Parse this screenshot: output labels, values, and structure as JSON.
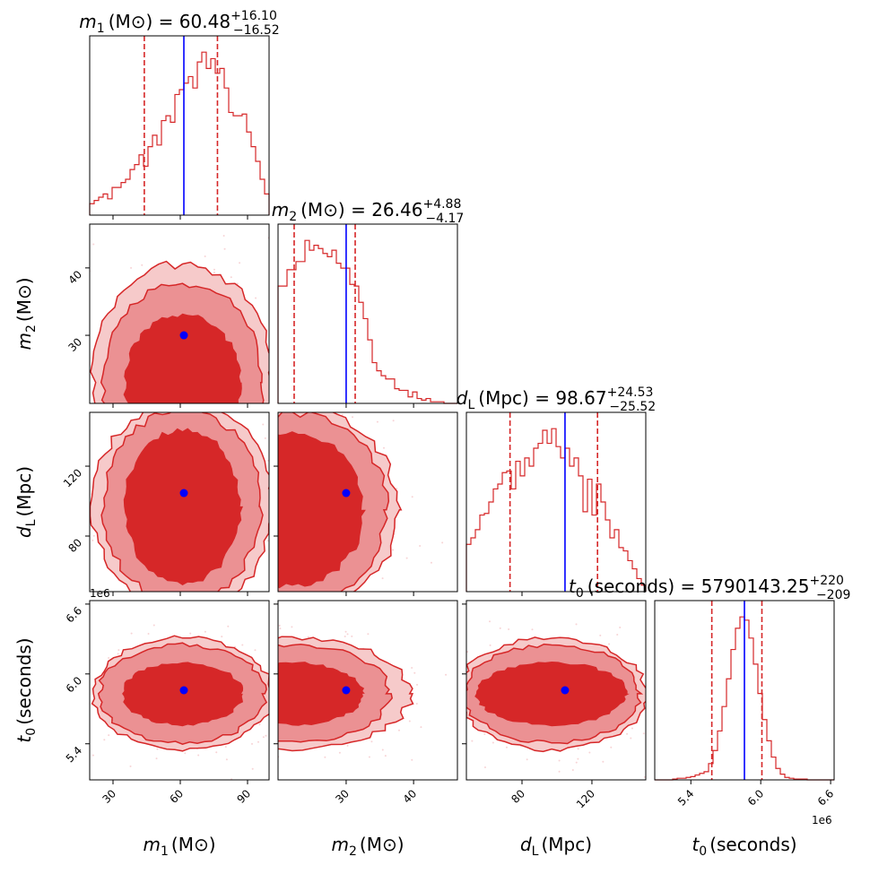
{
  "chart_data": {
    "type": "corner",
    "colors": {
      "main": "#d62728",
      "truth": "#0000ff",
      "fill_dark": "#d62728",
      "fill_mid": "#eb9193",
      "fill_light": "#f6caca",
      "scatter": "#f2b8bb"
    },
    "params": [
      {
        "symbol": "m",
        "sub": "1",
        "unit": "(M⊙)",
        "range": [
          19.6,
          99.6
        ],
        "ticks": [
          30,
          60,
          90
        ],
        "tick_labels": [
          "30",
          "60",
          "90"
        ],
        "title_value": " = 60.48",
        "title_plus": "+16.10",
        "title_minus": "−16.52",
        "quantiles": [
          43.96,
          76.58
        ],
        "truth": 61.6,
        "hist": [
          0.07,
          0.09,
          0.11,
          0.13,
          0.1,
          0.17,
          0.17,
          0.2,
          0.22,
          0.28,
          0.31,
          0.37,
          0.3,
          0.42,
          0.49,
          0.43,
          0.58,
          0.61,
          0.57,
          0.74,
          0.77,
          0.81,
          0.85,
          0.78,
          0.94,
          1.0,
          0.9,
          0.96,
          0.87,
          0.9,
          0.78,
          0.63,
          0.61,
          0.61,
          0.62,
          0.51,
          0.42,
          0.33,
          0.22,
          0.13
        ]
      },
      {
        "symbol": "m",
        "sub": "2",
        "unit": "(M⊙)",
        "range": [
          19.9,
          46.5
        ],
        "ticks": [
          30,
          40
        ],
        "tick_labels": [
          "30",
          "40"
        ],
        "title_value": " = 26.46",
        "title_plus": "+4.88",
        "title_minus": "−4.17",
        "quantiles": [
          22.29,
          31.34
        ],
        "truth": 30.0,
        "hist": [
          0.72,
          0.72,
          0.82,
          0.82,
          0.87,
          0.87,
          1.0,
          0.94,
          0.97,
          0.95,
          0.92,
          0.9,
          0.94,
          0.86,
          0.83,
          0.83,
          0.73,
          0.72,
          0.62,
          0.52,
          0.39,
          0.25,
          0.2,
          0.17,
          0.15,
          0.15,
          0.09,
          0.08,
          0.08,
          0.04,
          0.07,
          0.03,
          0.02,
          0.03,
          0.01,
          0.01,
          0.01,
          0,
          0,
          0
        ]
      },
      {
        "symbol": "d",
        "sub": "L",
        "unit": "(Mpc)",
        "range": [
          48.2,
          150.8
        ],
        "ticks": [
          80,
          120
        ],
        "tick_labels": [
          "80",
          "120"
        ],
        "title_value": " = 98.67",
        "title_plus": "+24.53",
        "title_minus": "−25.52",
        "quantiles": [
          73.15,
          123.2
        ],
        "truth": 104.6,
        "hist": [
          0.29,
          0.33,
          0.38,
          0.47,
          0.48,
          0.55,
          0.63,
          0.66,
          0.73,
          0.74,
          0.63,
          0.8,
          0.71,
          0.82,
          0.77,
          0.88,
          0.91,
          0.99,
          0.91,
          1.0,
          0.89,
          0.82,
          0.88,
          0.77,
          0.82,
          0.71,
          0.49,
          0.69,
          0.47,
          0.66,
          0.55,
          0.44,
          0.33,
          0.38,
          0.27,
          0.25,
          0.19,
          0.14,
          0.08,
          0.04
        ]
      },
      {
        "symbol": "t",
        "sub": "0",
        "unit": "(seconds)",
        "range": [
          5.09,
          6.63
        ],
        "ticks": [
          5.4,
          6.0,
          6.6
        ],
        "tick_labels": [
          "5.4",
          "6.0",
          "6.6"
        ],
        "offset": "1e6",
        "title_value": " = 5790143.25",
        "title_plus": "+220",
        "title_minus": "−209",
        "quantiles": [
          5.58,
          6.01
        ],
        "truth": 5.86,
        "hist": [
          0,
          0,
          0,
          0,
          0.005,
          0.01,
          0.01,
          0.015,
          0.02,
          0.03,
          0.04,
          0.05,
          0.1,
          0.18,
          0.3,
          0.45,
          0.62,
          0.8,
          0.93,
          1.0,
          0.98,
          0.87,
          0.71,
          0.53,
          0.37,
          0.24,
          0.14,
          0.07,
          0.035,
          0.015,
          0.01,
          0.005,
          0.005,
          0.005,
          0,
          0,
          0,
          0,
          0,
          0
        ]
      }
    ],
    "pairs": [
      {
        "x": 0,
        "y": 1,
        "center": [
          61,
          23
        ],
        "levels": [
          [
            40,
            17.6
          ],
          [
            35.6,
            14.7
          ],
          [
            26,
            10
          ]
        ]
      },
      {
        "x": 0,
        "y": 2,
        "center": [
          61,
          97
        ],
        "levels": [
          [
            40,
            60
          ],
          [
            35,
            55
          ],
          [
            26,
            44
          ]
        ]
      },
      {
        "x": 1,
        "y": 2,
        "center": [
          22,
          95
        ],
        "levels": [
          [
            15.6,
            60
          ],
          [
            14,
            55
          ],
          [
            10.6,
            44
          ]
        ]
      },
      {
        "x": 0,
        "y": 3,
        "center": [
          61,
          5.83
        ],
        "levels": [
          [
            40,
            0.48
          ],
          [
            37,
            0.42
          ],
          [
            27,
            0.27
          ]
        ]
      },
      {
        "x": 1,
        "y": 3,
        "center": [
          22,
          5.83
        ],
        "levels": [
          [
            17.5,
            0.48
          ],
          [
            14.5,
            0.42
          ],
          [
            10.6,
            0.27
          ]
        ]
      },
      {
        "x": 2,
        "y": 3,
        "center": [
          97,
          5.83
        ],
        "levels": [
          [
            54,
            0.48
          ],
          [
            50,
            0.42
          ],
          [
            43,
            0.27
          ]
        ]
      }
    ]
  }
}
